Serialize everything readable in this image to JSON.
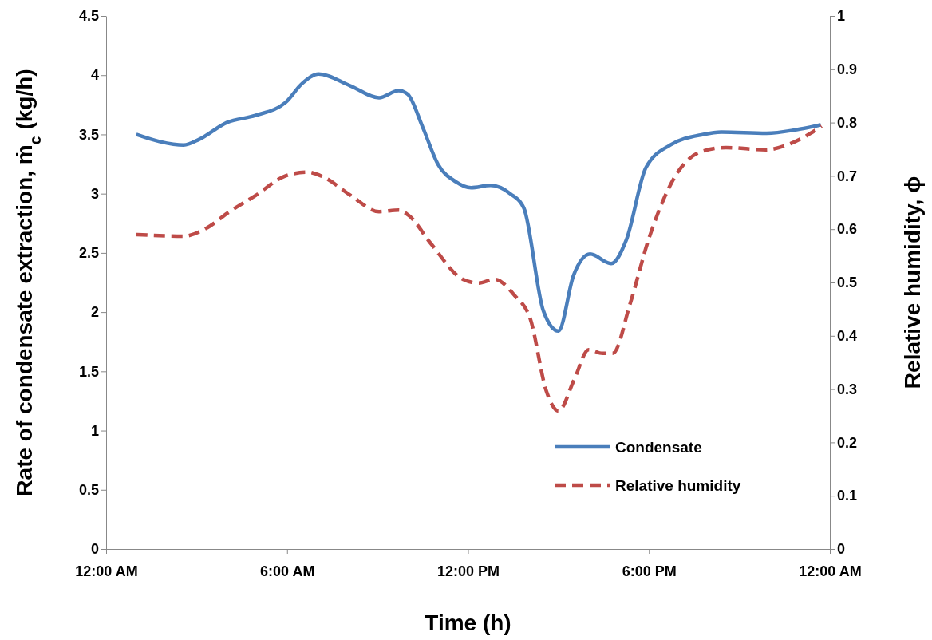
{
  "chart_data": {
    "type": "line",
    "xlabel": "Time (h)",
    "ylabel": "Rate of condensate extraction, ṁ$_{c}$ (kg/h)",
    "y2label": "Relative humidity, ϕ",
    "xlim": [
      0,
      24
    ],
    "xticks": [
      {
        "value": 0,
        "label": "12:00 AM"
      },
      {
        "value": 6,
        "label": "6:00 AM"
      },
      {
        "value": 12,
        "label": "12:00 PM"
      },
      {
        "value": 18,
        "label": "6:00 PM"
      },
      {
        "value": 24,
        "label": "12:00 AM"
      }
    ],
    "ylim": [
      0,
      4.5
    ],
    "yticks": [
      0,
      0.5,
      1,
      1.5,
      2,
      2.5,
      3,
      3.5,
      4,
      4.5
    ],
    "y2lim": [
      0,
      1
    ],
    "y2ticks": [
      0,
      0.1,
      0.2,
      0.3,
      0.4,
      0.5,
      0.6,
      0.7,
      0.8,
      0.9,
      1
    ],
    "grid": false,
    "legend": "bottom right",
    "marker": "none",
    "series": [
      {
        "name": "Condensate",
        "color": "#4a7ebb",
        "line_style": "solid",
        "x": [
          1,
          1.77,
          2.57,
          3.1,
          4,
          4.95,
          5.95,
          6.5,
          7.05,
          8.1,
          9.05,
          9.7,
          10,
          10.5,
          11,
          11.6,
          12.1,
          12.75,
          13.4,
          13.85,
          14.5,
          15,
          15.5,
          16.05,
          16.75,
          17.25,
          17.9,
          18.7,
          19.8,
          20.4,
          21.9,
          22.9,
          23.7
        ],
        "values": [
          3.5,
          3.44,
          3.41,
          3.46,
          3.6,
          3.66,
          3.77,
          3.93,
          4.01,
          3.91,
          3.81,
          3.87,
          3.84,
          3.56,
          3.25,
          3.1,
          3.05,
          3.07,
          3,
          2.88,
          2.01,
          1.84,
          2.31,
          2.49,
          2.41,
          2.61,
          3.22,
          3.41,
          3.5,
          3.52,
          3.51,
          3.54,
          3.58
        ]
      },
      {
        "name": "Relative humidity",
        "color": "#be4b48",
        "line_style": "dashed",
        "axis": "y2",
        "x": [
          1,
          2.57,
          3.36,
          4.02,
          4.95,
          5.95,
          6.67,
          7.2,
          8.12,
          9.05,
          9.71,
          10.03,
          10.77,
          11.83,
          12.35,
          12.88,
          13.54,
          14.07,
          14.6,
          15,
          15.53,
          16,
          16.46,
          16.8,
          17.38,
          17.99,
          18.97,
          19.76,
          20.56,
          21.88,
          22.67,
          23.73
        ],
        "values": [
          0.59,
          0.587,
          0.603,
          0.63,
          0.663,
          0.7,
          0.707,
          0.698,
          0.663,
          0.633,
          0.636,
          0.626,
          0.573,
          0.506,
          0.499,
          0.506,
          0.476,
          0.431,
          0.296,
          0.259,
          0.319,
          0.374,
          0.367,
          0.367,
          0.461,
          0.581,
          0.708,
          0.746,
          0.753,
          0.749,
          0.76,
          0.793
        ]
      }
    ]
  }
}
